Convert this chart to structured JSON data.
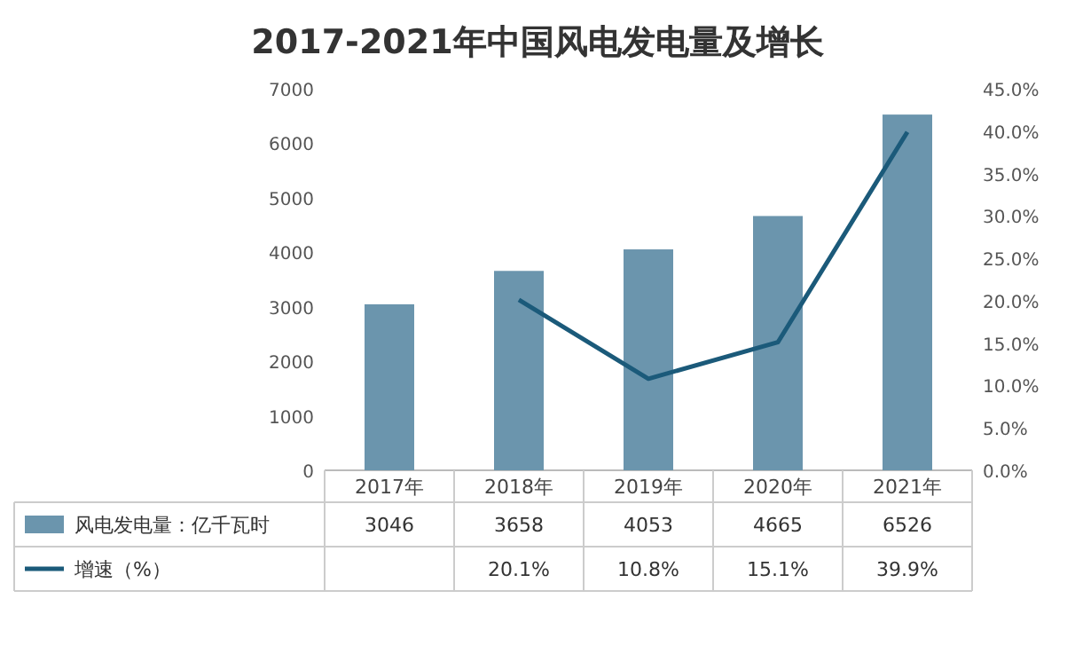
{
  "chart_data": {
    "type": "bar",
    "title": "2017-2021年中国风电发电量及增长",
    "categories": [
      "2017年",
      "2018年",
      "2019年",
      "2020年",
      "2021年"
    ],
    "series": [
      {
        "name": "风电发电量：亿千瓦时",
        "color": "#6b95ad",
        "values": [
          3046,
          3658,
          4053,
          4665,
          6526
        ],
        "value_labels": [
          "3046",
          "3658",
          "4053",
          "4665",
          "6526"
        ]
      },
      {
        "name": "增速（%）",
        "type": "line",
        "axis": "y2",
        "color": "#1b5a7a",
        "values": [
          null,
          20.1,
          10.8,
          15.1,
          39.9
        ],
        "value_labels": [
          null,
          "20.1%",
          "10.8%",
          "15.1%",
          "39.9%"
        ]
      }
    ],
    "ylim": [
      0,
      7000
    ],
    "yticks": [
      0,
      1000,
      2000,
      3000,
      4000,
      5000,
      6000,
      7000
    ],
    "y2lim": [
      0,
      45
    ],
    "y2ticks": [
      {
        "value": 0,
        "label": "0.0%"
      },
      {
        "value": 5,
        "label": "5.0%"
      },
      {
        "value": 10,
        "label": "10.0%"
      },
      {
        "value": 15,
        "label": "15.0%"
      },
      {
        "value": 20,
        "label": "20.0%"
      },
      {
        "value": 25,
        "label": "25.0%"
      },
      {
        "value": 30,
        "label": "30.0%"
      },
      {
        "value": 35,
        "label": "35.0%"
      },
      {
        "value": 40,
        "label": "40.0%"
      },
      {
        "value": 45,
        "label": "45.0%"
      }
    ],
    "legend": "bottom",
    "marker": "none",
    "line_style": "solid"
  }
}
